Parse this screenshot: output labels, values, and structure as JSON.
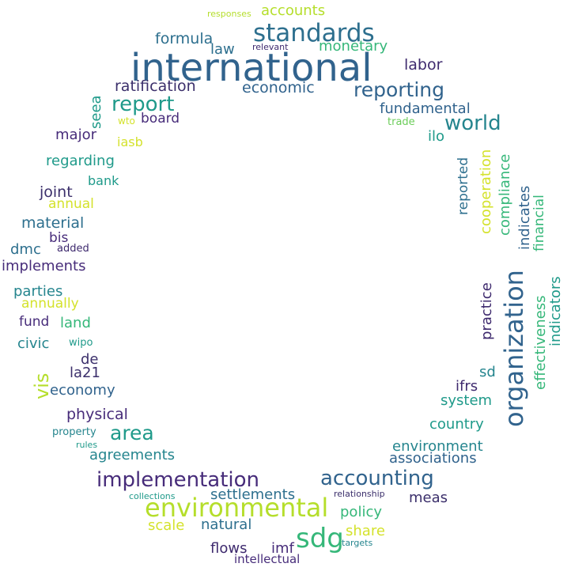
{
  "colors": {
    "navy": "#3b2f6b",
    "indigo": "#472c7a",
    "purple": "#3e2a6e",
    "blue": "#31638d",
    "steel": "#2d6f8e",
    "teal": "#25858e",
    "sea": "#1f9a8a",
    "green": "#35b779",
    "lime": "#6ccd5a",
    "yellowgreen": "#b5de2b",
    "yellow": "#d4e22c"
  },
  "words": {
    "international": "international",
    "standards": "standards",
    "organization": "organization",
    "accounting": "accounting",
    "environmental": "environmental",
    "implementation": "implementation",
    "sdg": "sdg",
    "reporting": "reporting",
    "report": "report",
    "area": "area",
    "world": "world",
    "vis": "vis",
    "accounts": "accounts",
    "responses": "responses",
    "formula": "formula",
    "law": "law",
    "relevant": "relevant",
    "monetary": "monetary",
    "labor": "labor",
    "ratification": "ratification",
    "economic": "economic",
    "fundamental": "fundamental",
    "seea": "seea",
    "wto": "wto",
    "board": "board",
    "trade": "trade",
    "major": "major",
    "iasb": "iasb",
    "ilo": "ilo",
    "regarding": "regarding",
    "bank": "bank",
    "joint": "joint",
    "annual": "annual",
    "material": "material",
    "bis": "bis",
    "dmc": "dmc",
    "added": "added",
    "implements": "implements",
    "parties": "parties",
    "annually": "annually",
    "fund": "fund",
    "land": "land",
    "civic": "civic",
    "wipo": "wipo",
    "de": "de",
    "la21": "la21",
    "economy": "economy",
    "physical": "physical",
    "property": "property",
    "rules": "rules",
    "agreements": "agreements",
    "collections": "collections",
    "settlements": "settlements",
    "scale": "scale",
    "natural": "natural",
    "flows": "flows",
    "imf": "imf",
    "intellectual": "intellectual",
    "targets": "targets",
    "share": "share",
    "policy": "policy",
    "relationship": "relationship",
    "meas": "meas",
    "associations": "associations",
    "environment": "environment",
    "country": "country",
    "system": "system",
    "ifrs": "ifrs",
    "sd": "sd",
    "practice": "practice",
    "reported": "reported",
    "cooperation": "cooperation",
    "compliance": "compliance",
    "indicates": "indicates",
    "financial": "financial",
    "effectiveness": "effectiveness",
    "indicators": "indicators"
  }
}
